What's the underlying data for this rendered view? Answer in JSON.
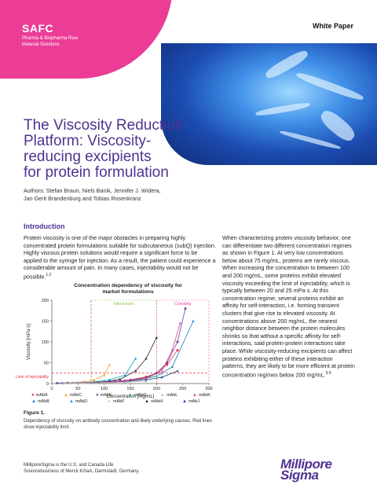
{
  "brand": {
    "logo_text": "SAFC",
    "sub_line1": "Pharma & Biopharma Raw",
    "sub_line2": "Material Solutions",
    "color": "#eb3c96"
  },
  "doc_type": "White Paper",
  "title_lines": [
    "The Viscosity Reduction",
    "Platform: Viscosity-",
    "reducing excipients",
    "for protein formulation"
  ],
  "authors_line1": "Authors: Stefan Braun, Niels Banik, Jennifer J. Widera,",
  "authors_line2": "Jan Gerit Brandenburg and Tobias Rosenkranz",
  "section_heading": "Introduction",
  "intro_left": "Protein viscosity is one of the major obstacles in preparing highly concentrated protein formulations suitable for subcutaneous (subQ) injection. Highly viscous protein solutions would require a significant force to be applied to the syringe for injection. As a result, the patient could experience a considerable amount of pain. In many cases, injectability would not be possible.",
  "intro_left_ref": "1,2",
  "intro_right": "When characterizing protein viscosity behavior, one can differentiate two different concentration regimes as shown in Figure 1. At very low concentrations below about 75 mg/mL, proteins are rarely viscous. When increasing the concentration to between 100 and 200 mg/mL, some proteins exhibit elevated viscosity exceeding the limit of injectability, which is typically between 20 and 25 mPa·s. At this concentration regime, several proteins exhibit an affinity for self-interaction, i.e. forming transient clusters that give rise to elevated viscosity. At concentrations above 200 mg/mL, the nearest neighbor distance between the protein molecules shrinks so that without a specific affinity for self-interactions, said protein-protein interactions take place. While viscosity-reducing excipients can affect proteins exhibiting either of these interaction patterns, they are likely to be more efficient at protein concentration regimes below 200 mg/mL.",
  "intro_right_ref": "3,4",
  "figure_label": "Figure 1.",
  "figure_caption": "Dependency of viscosity on antibody concentration and likely underlying causes. Red lines show injectability limit.",
  "footer_text": "MilliporeSigma is the U.S. and Canada Life Sciencebusiness of Merck KGaA, Darmstadt, Germany.",
  "footer_logo_line1": "Millipore",
  "footer_logo_line2": "Sigma",
  "chart_data": {
    "type": "line",
    "title": "Concentration dependency of viscosity for market formulations",
    "xlabel": "Concentration [mg/mL]",
    "ylabel": "Viscosity [mPa·s]",
    "xlim": [
      0,
      300
    ],
    "ylim": [
      0,
      200
    ],
    "xticks": [
      0,
      50,
      100,
      150,
      200,
      250,
      300
    ],
    "yticks": [
      0,
      50,
      100,
      150,
      200
    ],
    "limit_label": "Limit of injectability",
    "limit_value": 25,
    "regions": [
      {
        "label": "Interactions",
        "from": 75,
        "to": 200,
        "color": "#8cc63f"
      },
      {
        "label": "Crowding",
        "from": 200,
        "to": 300,
        "color": "#eb3c96"
      }
    ],
    "series": [
      {
        "name": "mAbA",
        "color": "#e5323c",
        "marker": "circle",
        "x": [
          10,
          30,
          60,
          90,
          120,
          150,
          180,
          200,
          220,
          240
        ],
        "y": [
          1,
          1.5,
          2,
          3,
          5,
          9,
          16,
          25,
          45,
          80
        ]
      },
      {
        "name": "mAbB",
        "color": "#1f78c8",
        "marker": "triangle",
        "x": [
          10,
          30,
          60,
          90,
          120,
          150,
          180,
          200,
          230,
          270
        ],
        "y": [
          1,
          1.5,
          2,
          3,
          4,
          7,
          12,
          18,
          40,
          150
        ]
      },
      {
        "name": "mAbC",
        "color": "#f5a623",
        "marker": "triangle",
        "x": [
          20,
          40,
          60,
          80,
          100,
          110
        ],
        "y": [
          1,
          2,
          4,
          8,
          20,
          45
        ]
      },
      {
        "name": "mAbD",
        "color": "#00a3c7",
        "marker": "triangle",
        "x": [
          20,
          50,
          80,
          110,
          140,
          160
        ],
        "y": [
          1,
          2,
          4,
          9,
          20,
          60
        ]
      },
      {
        "name": "mAbE",
        "color": "#6b3fa0",
        "marker": "circle",
        "x": [
          20,
          60,
          100,
          140,
          180,
          200,
          220,
          240,
          255
        ],
        "y": [
          1,
          2,
          4,
          7,
          14,
          25,
          50,
          100,
          180
        ]
      },
      {
        "name": "mAbF",
        "color": "#c8c8c8",
        "marker": "triangle",
        "x": [
          20,
          60,
          100,
          140,
          180,
          210
        ],
        "y": [
          1,
          2,
          3,
          6,
          12,
          22
        ]
      },
      {
        "name": "mAbG",
        "color": "#2cb67d",
        "marker": "triangle",
        "x": [
          20,
          60,
          100,
          140,
          170,
          200
        ],
        "y": [
          1,
          2,
          3,
          5,
          10,
          18
        ]
      },
      {
        "name": "mAbH",
        "color": "#222222",
        "marker": "triangle",
        "x": [
          20,
          60,
          100,
          130,
          160,
          180,
          200
        ],
        "y": [
          1,
          2,
          4,
          10,
          30,
          60,
          110
        ]
      },
      {
        "name": "mAbJ",
        "color": "#1a3f8f",
        "marker": "triangle",
        "x": [
          20,
          60,
          100,
          140,
          180,
          210,
          240
        ],
        "y": [
          1,
          2,
          3,
          5,
          9,
          15,
          30
        ]
      },
      {
        "name": "mAbK",
        "color": "#d8458f",
        "marker": "triangle",
        "x": [
          20,
          60,
          100,
          140,
          180,
          210,
          230,
          245
        ],
        "y": [
          1,
          2,
          3,
          6,
          12,
          30,
          80,
          145
        ]
      },
      {
        "name": "mAbL",
        "color": "#b8b8b8",
        "marker": "triangle",
        "x": [
          20,
          60,
          100,
          140,
          180
        ],
        "y": [
          1,
          1.5,
          2,
          3,
          5
        ]
      }
    ]
  }
}
